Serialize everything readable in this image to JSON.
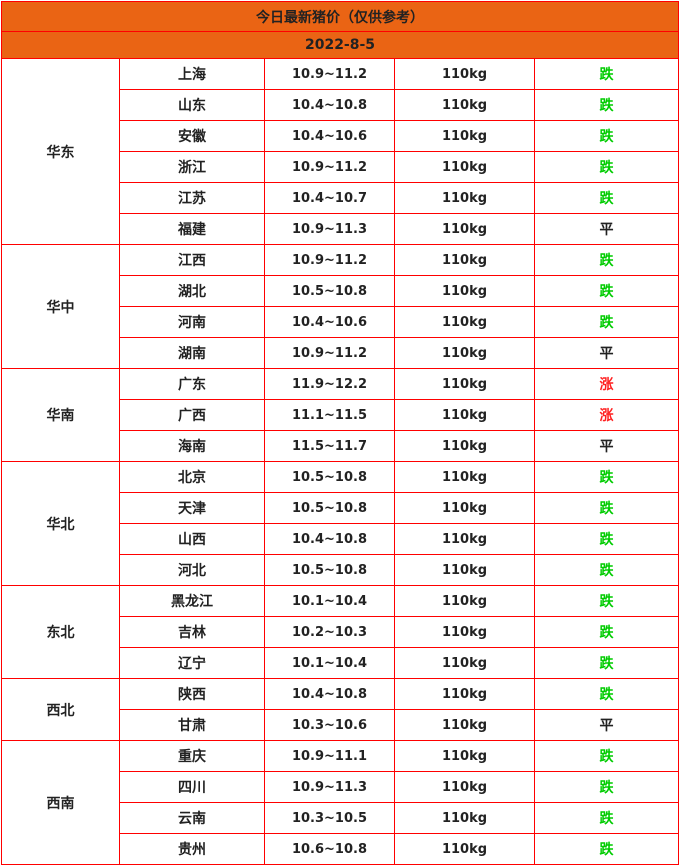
{
  "title": "今日最新猪价（仅供参考）",
  "date": "2022-8-5",
  "colors": {
    "header_bg": "#ea6414",
    "border": "#ff0000",
    "down": "#00cc00",
    "up": "#ff2020",
    "flat": "#222222"
  },
  "regions": [
    {
      "name": "华东",
      "rows": [
        {
          "province": "上海",
          "price": "10.9~11.2",
          "weight": "110kg",
          "trend": "跌"
        },
        {
          "province": "山东",
          "price": "10.4~10.8",
          "weight": "110kg",
          "trend": "跌"
        },
        {
          "province": "安徽",
          "price": "10.4~10.6",
          "weight": "110kg",
          "trend": "跌"
        },
        {
          "province": "浙江",
          "price": "10.9~11.2",
          "weight": "110kg",
          "trend": "跌"
        },
        {
          "province": "江苏",
          "price": "10.4~10.7",
          "weight": "110kg",
          "trend": "跌"
        },
        {
          "province": "福建",
          "price": "10.9~11.3",
          "weight": "110kg",
          "trend": "平"
        }
      ]
    },
    {
      "name": "华中",
      "rows": [
        {
          "province": "江西",
          "price": "10.9~11.2",
          "weight": "110kg",
          "trend": "跌"
        },
        {
          "province": "湖北",
          "price": "10.5~10.8",
          "weight": "110kg",
          "trend": "跌"
        },
        {
          "province": "河南",
          "price": "10.4~10.6",
          "weight": "110kg",
          "trend": "跌"
        },
        {
          "province": "湖南",
          "price": "10.9~11.2",
          "weight": "110kg",
          "trend": "平"
        }
      ]
    },
    {
      "name": "华南",
      "rows": [
        {
          "province": "广东",
          "price": "11.9~12.2",
          "weight": "110kg",
          "trend": "涨"
        },
        {
          "province": "广西",
          "price": "11.1~11.5",
          "weight": "110kg",
          "trend": "涨"
        },
        {
          "province": "海南",
          "price": "11.5~11.7",
          "weight": "110kg",
          "trend": "平"
        }
      ]
    },
    {
      "name": "华北",
      "rows": [
        {
          "province": "北京",
          "price": "10.5~10.8",
          "weight": "110kg",
          "trend": "跌"
        },
        {
          "province": "天津",
          "price": "10.5~10.8",
          "weight": "110kg",
          "trend": "跌"
        },
        {
          "province": "山西",
          "price": "10.4~10.8",
          "weight": "110kg",
          "trend": "跌"
        },
        {
          "province": "河北",
          "price": "10.5~10.8",
          "weight": "110kg",
          "trend": "跌"
        }
      ]
    },
    {
      "name": "东北",
      "rows": [
        {
          "province": "黑龙江",
          "price": "10.1~10.4",
          "weight": "110kg",
          "trend": "跌"
        },
        {
          "province": "吉林",
          "price": "10.2~10.3",
          "weight": "110kg",
          "trend": "跌"
        },
        {
          "province": "辽宁",
          "price": "10.1~10.4",
          "weight": "110kg",
          "trend": "跌"
        }
      ]
    },
    {
      "name": "西北",
      "rows": [
        {
          "province": "陕西",
          "price": "10.4~10.8",
          "weight": "110kg",
          "trend": "跌"
        },
        {
          "province": "甘肃",
          "price": "10.3~10.6",
          "weight": "110kg",
          "trend": "平"
        }
      ]
    },
    {
      "name": "西南",
      "rows": [
        {
          "province": "重庆",
          "price": "10.9~11.1",
          "weight": "110kg",
          "trend": "跌"
        },
        {
          "province": "四川",
          "price": "10.9~11.3",
          "weight": "110kg",
          "trend": "跌"
        },
        {
          "province": "云南",
          "price": "10.3~10.5",
          "weight": "110kg",
          "trend": "跌"
        },
        {
          "province": "贵州",
          "price": "10.6~10.8",
          "weight": "110kg",
          "trend": "跌"
        }
      ]
    }
  ]
}
